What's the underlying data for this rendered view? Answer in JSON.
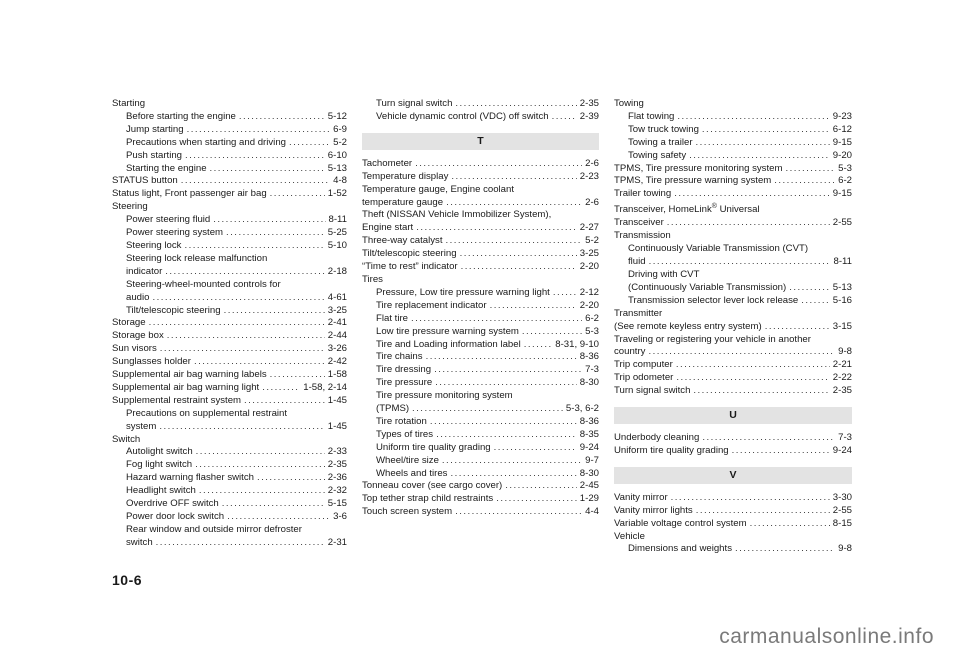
{
  "page_number": "10-6",
  "watermark": "carmanualsonline.info",
  "col1": {
    "starting": "Starting",
    "s1": {
      "label": "Before starting the engine",
      "page": "5-12"
    },
    "s2": {
      "label": "Jump starting",
      "page": "6-9"
    },
    "s3": {
      "label": "Precautions when starting and driving",
      "page": "5-2"
    },
    "s4": {
      "label": "Push starting",
      "page": "6-10"
    },
    "s5": {
      "label": "Starting the engine",
      "page": "5-13"
    },
    "status_button": {
      "label": "STATUS button",
      "page": "4-8"
    },
    "status_light": {
      "label": "Status light, Front passenger air bag",
      "page": "1-52"
    },
    "steering": "Steering",
    "st1": {
      "label": "Power steering fluid",
      "page": "8-11"
    },
    "st2": {
      "label": "Power steering system",
      "page": "5-25"
    },
    "st3": {
      "label": "Steering lock",
      "page": "5-10"
    },
    "st4_line1": "Steering lock release malfunction",
    "st4": {
      "label": "indicator",
      "page": "2-18"
    },
    "st5_line1": "Steering-wheel-mounted controls for",
    "st5": {
      "label": "audio",
      "page": "4-61"
    },
    "st6": {
      "label": "Tilt/telescopic steering",
      "page": "3-25"
    },
    "storage": {
      "label": "Storage",
      "page": "2-41"
    },
    "storage_box": {
      "label": "Storage box",
      "page": "2-44"
    },
    "sun_visors": {
      "label": "Sun visors",
      "page": "3-26"
    },
    "sunglasses": {
      "label": "Sunglasses holder",
      "page": "2-42"
    },
    "supp1": {
      "label": "Supplemental air bag warning labels",
      "page": "1-58"
    },
    "supp2": {
      "label": "Supplemental air bag warning light",
      "page": "1-58, 2-14"
    },
    "supp3": {
      "label": "Supplemental restraint system",
      "page": "1-45"
    },
    "supp3a_line1": "Precautions on supplemental restraint",
    "supp3a": {
      "label": "system",
      "page": "1-45"
    },
    "switch": "Switch",
    "sw1": {
      "label": "Autolight switch",
      "page": "2-33"
    },
    "sw2": {
      "label": "Fog light switch",
      "page": "2-35"
    },
    "sw3": {
      "label": "Hazard warning flasher switch",
      "page": "2-36"
    },
    "sw4": {
      "label": "Headlight switch",
      "page": "2-32"
    },
    "sw5": {
      "label": "Overdrive OFF switch",
      "page": "5-15"
    },
    "sw6": {
      "label": "Power door lock switch",
      "page": "3-6"
    },
    "sw7_line1": "Rear window and outside mirror defroster",
    "sw7": {
      "label": "switch",
      "page": "2-31"
    }
  },
  "col2": {
    "turn_signal": {
      "label": "Turn signal switch",
      "page": "2-35"
    },
    "vdc": {
      "label": "Vehicle dynamic control (VDC) off switch",
      "page": "2-39"
    },
    "letter_t": "T",
    "tachometer": {
      "label": "Tachometer",
      "page": "2-6"
    },
    "temp_display": {
      "label": "Temperature display",
      "page": "2-23"
    },
    "temp_gauge_line1": "Temperature gauge, Engine coolant",
    "temp_gauge": {
      "label": "temperature gauge",
      "page": "2-6"
    },
    "theft_line1": "Theft (NISSAN Vehicle Immobilizer System),",
    "theft": {
      "label": "Engine start",
      "page": "2-27"
    },
    "three_way": {
      "label": "Three-way catalyst",
      "page": "5-2"
    },
    "tilt": {
      "label": "Tilt/telescopic steering",
      "page": "3-25"
    },
    "time_to_rest": {
      "label": "“Time to rest” indicator",
      "page": "2-20"
    },
    "tires": "Tires",
    "t1": {
      "label": "Pressure, Low tire pressure warning light",
      "page": "2-12"
    },
    "t2": {
      "label": "Tire replacement indicator",
      "page": "2-20"
    },
    "t3": {
      "label": "Flat tire",
      "page": "6-2"
    },
    "t4": {
      "label": "Low tire pressure warning system",
      "page": "5-3"
    },
    "t5": {
      "label": "Tire and Loading information label",
      "page": "8-31, 9-10"
    },
    "t6": {
      "label": "Tire chains",
      "page": "8-36"
    },
    "t7": {
      "label": "Tire dressing",
      "page": "7-3"
    },
    "t8": {
      "label": "Tire pressure",
      "page": "8-30"
    },
    "t9_line1": "Tire pressure monitoring system",
    "t9": {
      "label": "(TPMS)",
      "page": "5-3, 6-2"
    },
    "t10": {
      "label": "Tire rotation",
      "page": "8-36"
    },
    "t11": {
      "label": "Types of tires",
      "page": "8-35"
    },
    "t12": {
      "label": "Uniform tire quality grading",
      "page": "9-24"
    },
    "t13": {
      "label": "Wheel/tire size",
      "page": "9-7"
    },
    "t14": {
      "label": "Wheels and tires",
      "page": "8-30"
    },
    "tonneau": {
      "label": "Tonneau cover (see cargo cover)",
      "page": "2-45"
    },
    "top_tether": {
      "label": "Top tether strap child restraints",
      "page": "1-29"
    },
    "touch_screen": {
      "label": "Touch screen system",
      "page": "4-4"
    }
  },
  "col3": {
    "towing": "Towing",
    "tw1": {
      "label": "Flat towing",
      "page": "9-23"
    },
    "tw2": {
      "label": "Tow truck towing",
      "page": "6-12"
    },
    "tw3": {
      "label": "Towing a trailer",
      "page": "9-15"
    },
    "tw4": {
      "label": "Towing safety",
      "page": "9-20"
    },
    "tpms_mon": {
      "label": "TPMS, Tire pressure monitoring system",
      "page": "5-3"
    },
    "tpms_warn": {
      "label": "TPMS, Tire pressure warning system",
      "page": "6-2"
    },
    "trailer": {
      "label": "Trailer towing",
      "page": "9-15"
    },
    "transceiver_line1": "Transceiver, HomeLink",
    "transceiver_reg": "®",
    "transceiver_line1b": " Universal",
    "transceiver": {
      "label": "Transceiver",
      "page": "2-55"
    },
    "transmission": "Transmission",
    "tr1_line1": "Continuously Variable Transmission (CVT)",
    "tr1": {
      "label": "fluid",
      "page": "8-11"
    },
    "tr2_line1": "Driving with CVT",
    "tr2": {
      "label": "(Continuously Variable Transmission)",
      "page": "5-13"
    },
    "tr3": {
      "label": "Transmission selector lever lock release",
      "page": "5-16"
    },
    "transmitter_line1": "Transmitter",
    "transmitter": {
      "label": "(See remote keyless entry system)",
      "page": "3-15"
    },
    "traveling_line1": "Traveling or registering your vehicle in another",
    "traveling": {
      "label": "country",
      "page": "9-8"
    },
    "trip_computer": {
      "label": "Trip computer",
      "page": "2-21"
    },
    "trip_odometer": {
      "label": "Trip odometer",
      "page": "2-22"
    },
    "turn_signal": {
      "label": "Turn signal switch",
      "page": "2-35"
    },
    "letter_u": "U",
    "underbody": {
      "label": "Underbody cleaning",
      "page": "7-3"
    },
    "uniform": {
      "label": "Uniform tire quality grading",
      "page": "9-24"
    },
    "letter_v": "V",
    "vanity_mirror": {
      "label": "Vanity mirror",
      "page": "3-30"
    },
    "vanity_lights": {
      "label": "Vanity mirror lights",
      "page": "2-55"
    },
    "variable_voltage": {
      "label": "Variable voltage control system",
      "page": "8-15"
    },
    "vehicle": "Vehicle",
    "dimensions": {
      "label": "Dimensions and weights",
      "page": "9-8"
    }
  }
}
